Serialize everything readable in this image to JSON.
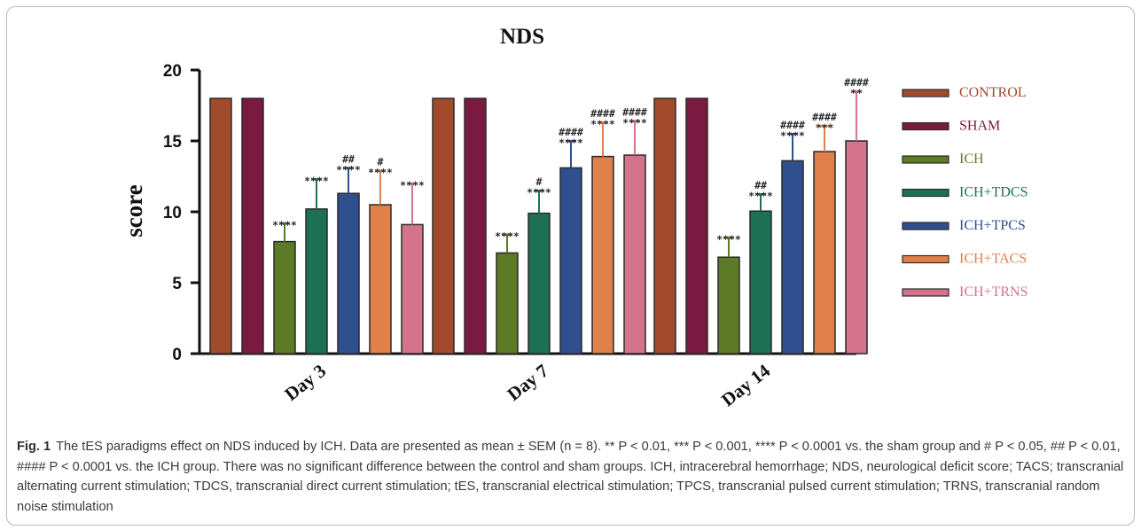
{
  "chart_data": {
    "type": "bar",
    "title": "NDS",
    "xlabel": "",
    "ylabel": "score",
    "ylim": [
      0,
      20
    ],
    "yticks": [
      0,
      5,
      10,
      15,
      20
    ],
    "grid": false,
    "legend_position": "right",
    "categories": [
      "Day 3",
      "Day 7",
      "Day 14"
    ],
    "series": [
      {
        "name": "CONTROL",
        "color": "#a24a2c",
        "values": [
          18,
          18,
          18
        ],
        "errors": [
          0,
          0,
          0
        ],
        "labels": [
          [
            "",
            ""
          ],
          [
            "",
            ""
          ],
          [
            "",
            ""
          ]
        ]
      },
      {
        "name": "SHAM",
        "color": "#7b1a40",
        "values": [
          18,
          18,
          18
        ],
        "errors": [
          0,
          0,
          0
        ],
        "labels": [
          [
            "",
            ""
          ],
          [
            "",
            ""
          ],
          [
            "",
            ""
          ]
        ]
      },
      {
        "name": "ICH",
        "color": "#5d7a27",
        "values": [
          7.9,
          7.1,
          6.8
        ],
        "errors": [
          1.3,
          1.3,
          1.4
        ],
        "labels": [
          [
            "****",
            ""
          ],
          [
            "****",
            ""
          ],
          [
            "****",
            ""
          ]
        ]
      },
      {
        "name": "ICH+TDCS",
        "color": "#1e7054",
        "values": [
          10.2,
          9.9,
          10.05
        ],
        "errors": [
          2.1,
          1.6,
          1.2
        ],
        "labels": [
          [
            "****",
            ""
          ],
          [
            "****",
            "#"
          ],
          [
            "****",
            "##"
          ]
        ]
      },
      {
        "name": "ICH+TPCS",
        "color": "#2f4f8f",
        "values": [
          11.3,
          13.1,
          13.6
        ],
        "errors": [
          1.8,
          1.9,
          1.9
        ],
        "labels": [
          [
            "****",
            "##"
          ],
          [
            "****",
            "####"
          ],
          [
            "****",
            "####"
          ]
        ]
      },
      {
        "name": "ICH+TACS",
        "color": "#e0804a",
        "values": [
          10.5,
          13.9,
          14.25
        ],
        "errors": [
          2.4,
          2.4,
          1.8
        ],
        "labels": [
          [
            "****",
            "#"
          ],
          [
            "****",
            "####"
          ],
          [
            "***",
            "####"
          ]
        ]
      },
      {
        "name": "ICH+TRNS",
        "color": "#d4738c",
        "values": [
          9.1,
          14.0,
          15.0
        ],
        "errors": [
          2.9,
          2.4,
          3.5
        ],
        "labels": [
          [
            "****",
            ""
          ],
          [
            "****",
            "####"
          ],
          [
            "**",
            "####"
          ]
        ]
      }
    ]
  },
  "caption": {
    "label": "Fig. 1",
    "text": "The tES paradigms effect on NDS induced by ICH. Data are presented as mean ± SEM (n = 8). ** P < 0.01, *** P < 0.001, **** P < 0.0001 vs. the sham group and # P < 0.05, ## P < 0.01, #### P < 0.0001 vs. the ICH group. There was no significant difference between the control and sham groups. ICH, intracerebral hemorrhage; NDS, neurological deficit score; TACS; transcranial alternating current stimulation; TDCS, transcranial direct current stimulation; tES, transcranial electrical stimulation; TPCS, transcranial pulsed current stimulation; TRNS, transcranial random noise stimulation"
  }
}
